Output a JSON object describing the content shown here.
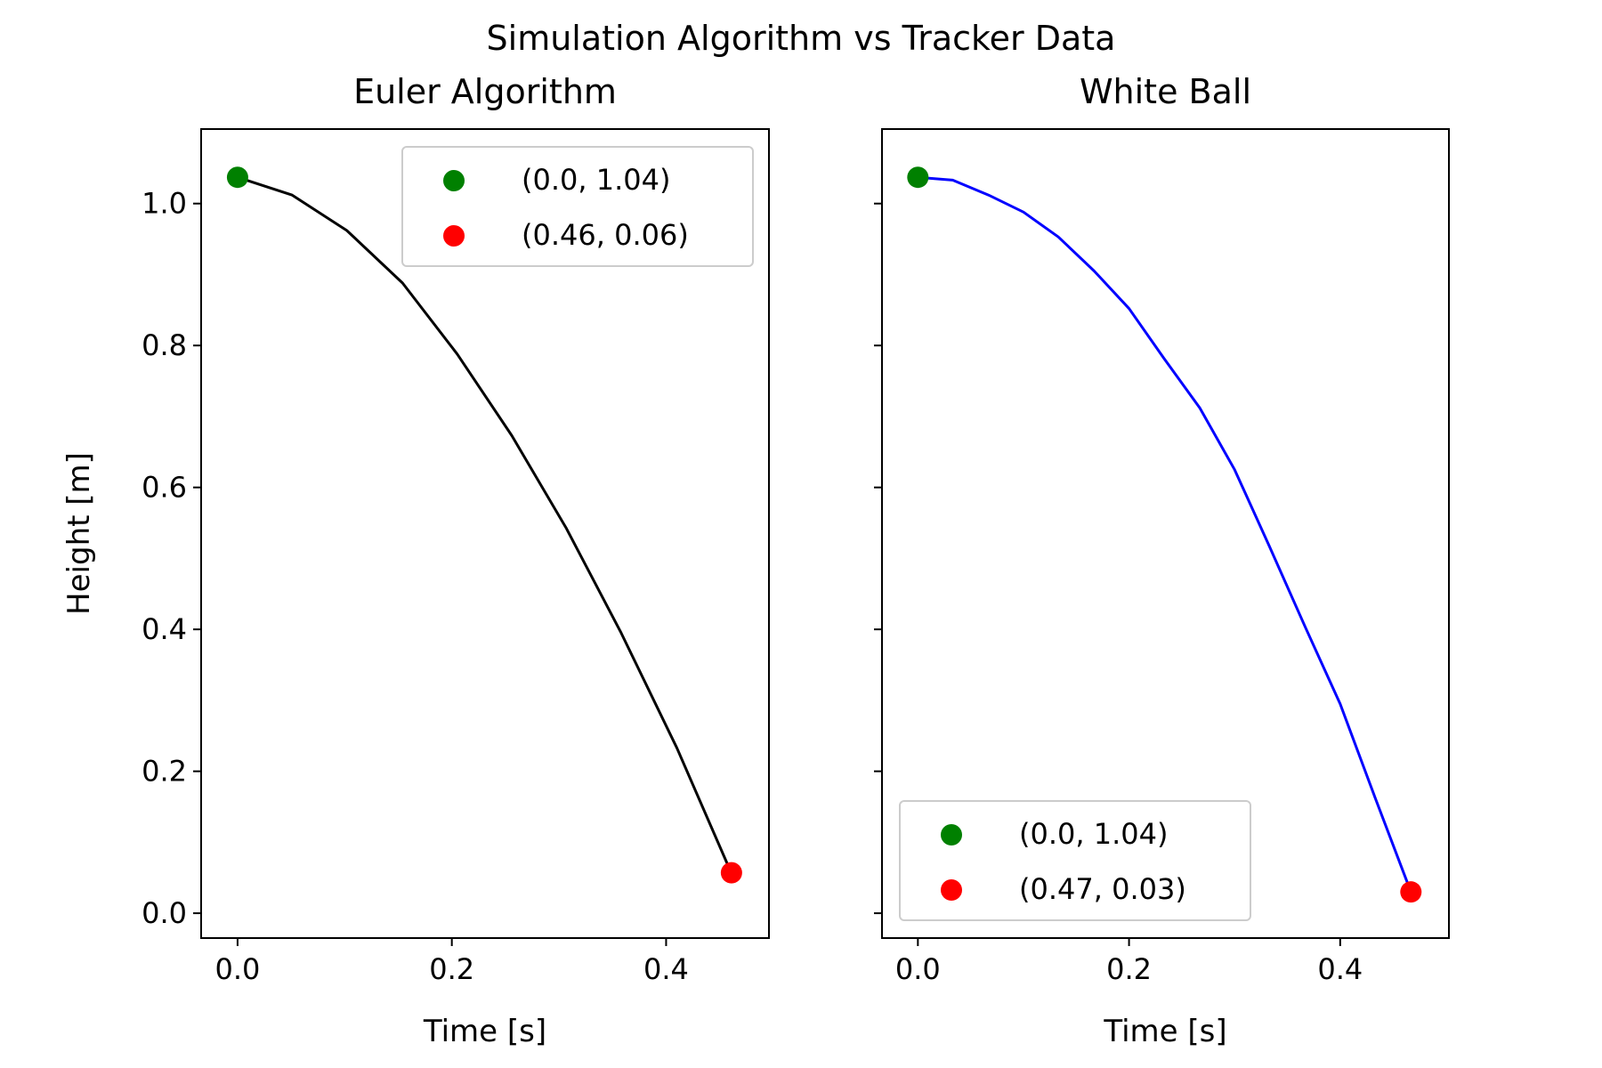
{
  "suptitle": "Simulation Algorithm vs Tracker Data",
  "chart_data": [
    {
      "type": "line",
      "title": "Euler Algorithm",
      "xlabel": "Time [s]",
      "ylabel": "Height [m]",
      "xlim": [
        -0.034,
        0.496
      ],
      "ylim": [
        -0.035,
        1.105
      ],
      "xticks": [
        0.0,
        0.2,
        0.4
      ],
      "xtick_labels": [
        "0.0",
        "0.2",
        "0.4"
      ],
      "yticks": [
        0.0,
        0.2,
        0.4,
        0.6,
        0.8,
        1.0
      ],
      "ytick_labels": [
        "0.0",
        "0.2",
        "0.4",
        "0.6",
        "0.8",
        "1.0"
      ],
      "show_ytick_labels": true,
      "grid": false,
      "legend_position": "upper right",
      "series": [
        {
          "color": "#000000",
          "x": [
            0.0,
            0.051,
            0.102,
            0.154,
            0.205,
            0.256,
            0.307,
            0.358,
            0.41,
            0.461
          ],
          "y": [
            1.037,
            1.012,
            0.962,
            0.888,
            0.788,
            0.673,
            0.542,
            0.395,
            0.233,
            0.056
          ]
        }
      ],
      "points": [
        {
          "label": "(0.0, 1.04)",
          "x": 0.0,
          "y": 1.037,
          "color": "#008000"
        },
        {
          "label": "(0.46, 0.06)",
          "x": 0.461,
          "y": 0.057,
          "color": "#ff0000"
        }
      ]
    },
    {
      "type": "line",
      "title": "White Ball",
      "xlabel": "Time [s]",
      "ylabel": "",
      "xlim": [
        -0.034,
        0.503
      ],
      "ylim": [
        -0.035,
        1.105
      ],
      "xticks": [
        0.0,
        0.2,
        0.4
      ],
      "xtick_labels": [
        "0.0",
        "0.2",
        "0.4"
      ],
      "yticks": [
        0.0,
        0.2,
        0.4,
        0.6,
        0.8,
        1.0
      ],
      "ytick_labels": [],
      "show_ytick_labels": false,
      "grid": false,
      "legend_position": "lower left",
      "series": [
        {
          "color": "#0000ff",
          "x": [
            0.0,
            0.033,
            0.067,
            0.1,
            0.133,
            0.167,
            0.2,
            0.233,
            0.267,
            0.3,
            0.333,
            0.367,
            0.4,
            0.433,
            0.467
          ],
          "y": [
            1.037,
            1.033,
            1.012,
            0.988,
            0.953,
            0.905,
            0.852,
            0.782,
            0.712,
            0.625,
            0.517,
            0.403,
            0.295,
            0.163,
            0.03
          ]
        }
      ],
      "points": [
        {
          "label": "(0.0, 1.04)",
          "x": 0.0,
          "y": 1.037,
          "color": "#008000"
        },
        {
          "label": "(0.47, 0.03)",
          "x": 0.467,
          "y": 0.03,
          "color": "#ff0000"
        }
      ]
    }
  ]
}
